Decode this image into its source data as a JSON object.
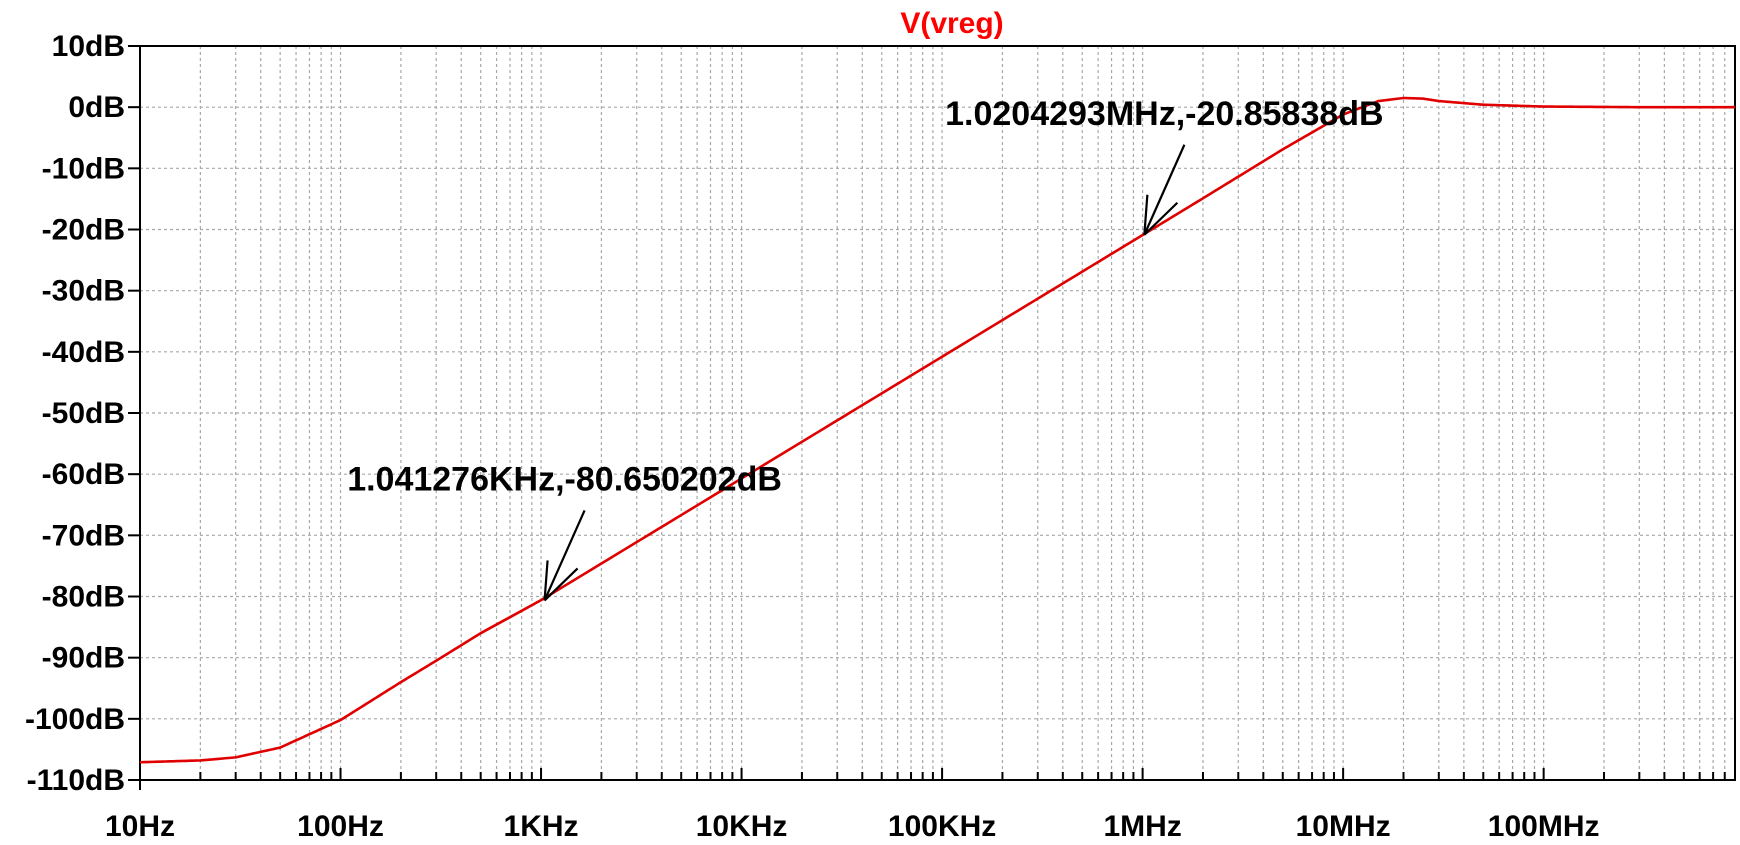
{
  "chart_data": {
    "type": "line",
    "title": "V(vreg)",
    "title_color": "#ff0000",
    "line_color": "#e00000",
    "grid": true,
    "x_scale": "log",
    "xlim": [
      10,
      900000000
    ],
    "ylim": [
      -110,
      10
    ],
    "x_ticks": [
      {
        "value": 10,
        "label": "10Hz"
      },
      {
        "value": 100,
        "label": "100Hz"
      },
      {
        "value": 1000,
        "label": "1KHz"
      },
      {
        "value": 10000,
        "label": "10KHz"
      },
      {
        "value": 100000,
        "label": "100KHz"
      },
      {
        "value": 1000000,
        "label": "1MHz"
      },
      {
        "value": 10000000,
        "label": "10MHz"
      },
      {
        "value": 100000000,
        "label": "100MHz"
      }
    ],
    "y_ticks": [
      {
        "value": 10,
        "label": "10dB"
      },
      {
        "value": 0,
        "label": "0dB"
      },
      {
        "value": -10,
        "label": "-10dB"
      },
      {
        "value": -20,
        "label": "-20dB"
      },
      {
        "value": -30,
        "label": "-30dB"
      },
      {
        "value": -40,
        "label": "-40dB"
      },
      {
        "value": -50,
        "label": "-50dB"
      },
      {
        "value": -60,
        "label": "-60dB"
      },
      {
        "value": -70,
        "label": "-70dB"
      },
      {
        "value": -80,
        "label": "-80dB"
      },
      {
        "value": -90,
        "label": "-90dB"
      },
      {
        "value": -100,
        "label": "-100dB"
      },
      {
        "value": -110,
        "label": "-110dB"
      }
    ],
    "series": [
      {
        "x": [
          10,
          20,
          30,
          50,
          100,
          200,
          300,
          500,
          1000,
          10000,
          100000,
          1000000,
          2000000,
          5000000,
          10000000,
          15000000,
          20000000,
          25000000,
          30000000,
          50000000,
          100000000,
          300000000,
          900000000
        ],
        "y": [
          -107.1,
          -106.8,
          -106.3,
          -104.7,
          -100.2,
          -94.0,
          -90.5,
          -86.0,
          -80.6,
          -60.7,
          -40.8,
          -20.9,
          -14.9,
          -6.9,
          -1.2,
          1.0,
          1.5,
          1.4,
          1.0,
          0.4,
          0.1,
          0.0,
          0.0
        ]
      }
    ],
    "annotations": [
      {
        "text": "1.041276KHz,-80.650202dB",
        "x": 1041.276,
        "y": -80.650202
      },
      {
        "text": "1.0204293MHz,-20.85838dB",
        "x": 1020429.3,
        "y": -20.85838
      }
    ]
  }
}
